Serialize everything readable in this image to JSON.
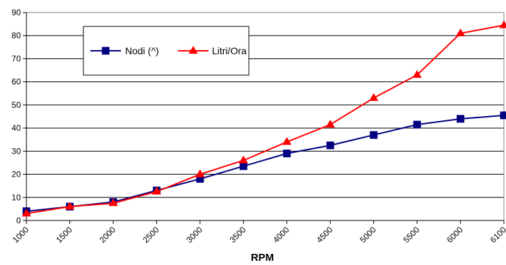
{
  "chart_data": {
    "type": "line",
    "title": "",
    "xlabel": "RPM",
    "ylabel": "",
    "x": [
      1000,
      1500,
      2000,
      2500,
      3000,
      3500,
      4000,
      4500,
      5000,
      5500,
      6000,
      6100
    ],
    "x_tick_labels": [
      "1000",
      "1500",
      "2000",
      "2500",
      "3000",
      "3500",
      "4000",
      "4500",
      "5000",
      "5500",
      "6000",
      "6100"
    ],
    "ylim": [
      0,
      90
    ],
    "y_ticks": [
      0,
      10,
      20,
      30,
      40,
      50,
      60,
      70,
      80,
      90
    ],
    "grid": true,
    "legend_position": "top-left",
    "series": [
      {
        "name": "Nodi (^)",
        "color": "#000080",
        "marker": "square",
        "values": [
          4,
          6,
          8,
          13,
          18,
          23.5,
          29,
          32.5,
          37,
          41.5,
          44,
          45.5
        ]
      },
      {
        "name": "Litri/Ora",
        "color": "#ff0000",
        "marker": "triangle",
        "values": [
          3,
          6,
          7.5,
          12.5,
          20,
          26,
          34,
          41.5,
          53,
          63,
          81,
          84.5
        ]
      }
    ]
  }
}
